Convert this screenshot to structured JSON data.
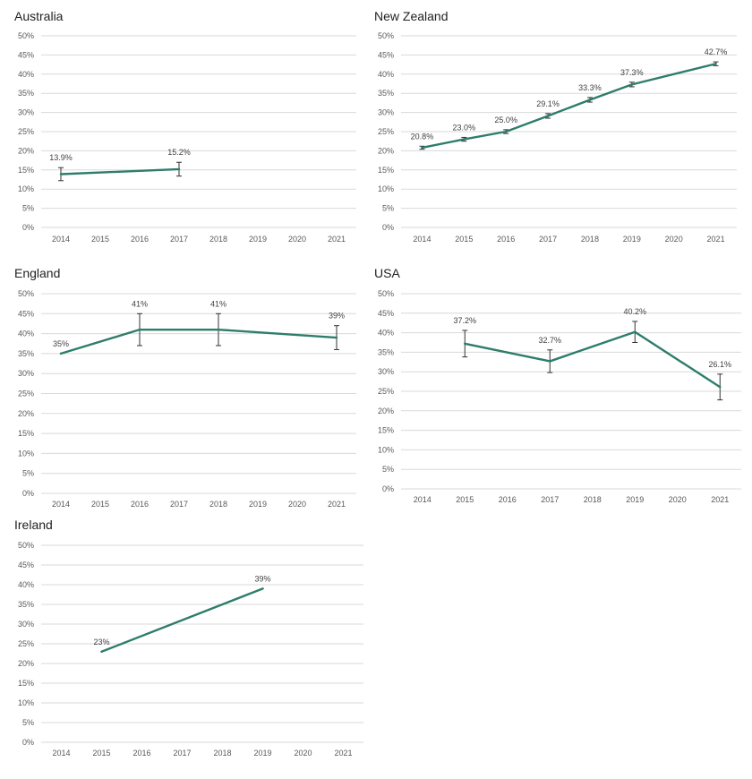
{
  "colors": {
    "line": "#2e7d6b",
    "grid": "#d9d9d9",
    "error_bar": "#333333"
  },
  "chart_data": [
    {
      "type": "line",
      "title": "Australia",
      "categories": [
        "2014",
        "2015",
        "2016",
        "2017",
        "2018",
        "2019",
        "2020",
        "2021"
      ],
      "y_ticks": [
        "0%",
        "5%",
        "10%",
        "15%",
        "20%",
        "25%",
        "30%",
        "35%",
        "40%",
        "45%",
        "50%"
      ],
      "ylim": [
        0,
        50
      ],
      "grid": true,
      "series": [
        {
          "points": [
            {
              "x": "2014",
              "y": 13.9,
              "label": "13.9%",
              "err_low": 12.2,
              "err_high": 15.6
            },
            {
              "x": "2017",
              "y": 15.2,
              "label": "15.2%",
              "err_low": 13.4,
              "err_high": 17.0
            }
          ]
        }
      ]
    },
    {
      "type": "line",
      "title": "New Zealand",
      "categories": [
        "2014",
        "2015",
        "2016",
        "2017",
        "2018",
        "2019",
        "2020",
        "2021"
      ],
      "y_ticks": [
        "0%",
        "5%",
        "10%",
        "15%",
        "20%",
        "25%",
        "30%",
        "35%",
        "40%",
        "45%",
        "50%"
      ],
      "ylim": [
        0,
        50
      ],
      "grid": true,
      "series": [
        {
          "points": [
            {
              "x": "2014",
              "y": 20.8,
              "label": "20.8%",
              "err_low": 20.4,
              "err_high": 21.2
            },
            {
              "x": "2015",
              "y": 23.0,
              "label": "23.0%",
              "err_low": 22.5,
              "err_high": 23.5
            },
            {
              "x": "2016",
              "y": 25.0,
              "label": "25.0%",
              "err_low": 24.5,
              "err_high": 25.5
            },
            {
              "x": "2017",
              "y": 29.1,
              "label": "29.1%",
              "err_low": 28.5,
              "err_high": 29.7
            },
            {
              "x": "2018",
              "y": 33.3,
              "label": "33.3%",
              "err_low": 32.7,
              "err_high": 33.9
            },
            {
              "x": "2019",
              "y": 37.3,
              "label": "37.3%",
              "err_low": 36.7,
              "err_high": 37.9
            },
            {
              "x": "2021",
              "y": 42.7,
              "label": "42.7%",
              "err_low": 42.2,
              "err_high": 43.2
            }
          ]
        }
      ]
    },
    {
      "type": "line",
      "title": "England",
      "categories": [
        "2014",
        "2015",
        "2016",
        "2017",
        "2018",
        "2019",
        "2020",
        "2021"
      ],
      "y_ticks": [
        "0%",
        "5%",
        "10%",
        "15%",
        "20%",
        "25%",
        "30%",
        "35%",
        "40%",
        "45%",
        "50%"
      ],
      "ylim": [
        0,
        50
      ],
      "grid": true,
      "series": [
        {
          "points": [
            {
              "x": "2014",
              "y": 35,
              "label": "35%"
            },
            {
              "x": "2016",
              "y": 41,
              "label": "41%",
              "err_low": 37,
              "err_high": 45
            },
            {
              "x": "2018",
              "y": 41,
              "label": "41%",
              "err_low": 37,
              "err_high": 45
            },
            {
              "x": "2021",
              "y": 39,
              "label": "39%",
              "err_low": 36,
              "err_high": 42
            }
          ]
        }
      ]
    },
    {
      "type": "line",
      "title": "USA",
      "categories": [
        "2014",
        "2015",
        "2016",
        "2017",
        "2018",
        "2019",
        "2020",
        "2021"
      ],
      "y_ticks": [
        "0%",
        "5%",
        "10%",
        "15%",
        "20%",
        "25%",
        "30%",
        "35%",
        "40%",
        "45%",
        "50%"
      ],
      "ylim": [
        0,
        50
      ],
      "grid": true,
      "series": [
        {
          "points": [
            {
              "x": "2015",
              "y": 37.2,
              "label": "37.2%",
              "err_low": 33.8,
              "err_high": 40.6
            },
            {
              "x": "2017",
              "y": 32.7,
              "label": "32.7%",
              "err_low": 29.8,
              "err_high": 35.6
            },
            {
              "x": "2019",
              "y": 40.2,
              "label": "40.2%",
              "err_low": 37.5,
              "err_high": 42.9
            },
            {
              "x": "2021",
              "y": 26.1,
              "label": "26.1%",
              "err_low": 22.8,
              "err_high": 29.4
            }
          ]
        }
      ]
    },
    {
      "type": "line",
      "title": "Ireland",
      "categories": [
        "2014",
        "2015",
        "2016",
        "2017",
        "2018",
        "2019",
        "2020",
        "2021"
      ],
      "y_ticks": [
        "0%",
        "5%",
        "10%",
        "15%",
        "20%",
        "25%",
        "30%",
        "35%",
        "40%",
        "45%",
        "50%"
      ],
      "ylim": [
        0,
        50
      ],
      "grid": true,
      "series": [
        {
          "points": [
            {
              "x": "2015",
              "y": 23,
              "label": "23%"
            },
            {
              "x": "2019",
              "y": 39,
              "label": "39%"
            }
          ]
        }
      ]
    }
  ]
}
